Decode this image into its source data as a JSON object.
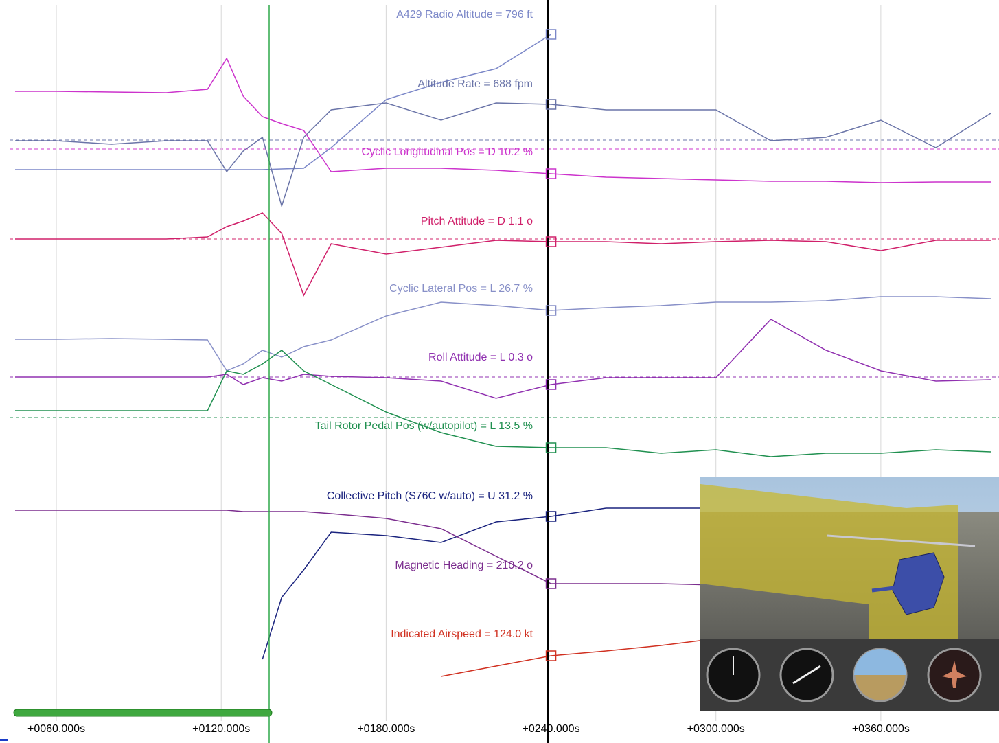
{
  "chart_data": {
    "type": "line",
    "x": [
      45,
      60,
      80,
      100,
      115,
      122,
      128,
      135,
      142,
      150,
      160,
      180,
      200,
      220,
      240,
      260,
      280,
      300,
      320,
      340,
      360,
      380,
      400
    ],
    "xlim": [
      43,
      403
    ],
    "xticks": [
      {
        "value": 60,
        "label": "+0060.000s"
      },
      {
        "value": 120,
        "label": "+0120.000s"
      },
      {
        "value": 180,
        "label": "+0180.000s"
      },
      {
        "value": 240,
        "label": "+0240.000s"
      },
      {
        "value": 300,
        "label": "+0300.000s"
      },
      {
        "value": 360,
        "label": "+0360.000s"
      }
    ],
    "ylim": [
      0,
      1050
    ],
    "grid": true,
    "series": [
      {
        "name": "A429 Radio Altitude = 796 ft",
        "color": "#7b87c8",
        "values": [
          803,
          803,
          803,
          803,
          803,
          803,
          803,
          803,
          804,
          805,
          835,
          905,
          930,
          950,
          1000,
          null,
          null,
          null,
          null,
          null,
          null,
          null,
          null
        ]
      },
      {
        "name": "Altitude Rate = 688 fpm",
        "color": "#6a74a8",
        "values": [
          845,
          845,
          840,
          845,
          845,
          800,
          830,
          850,
          750,
          850,
          890,
          900,
          875,
          900,
          898,
          890,
          890,
          890,
          845,
          850,
          875,
          835,
          885
        ]
      },
      {
        "name": "Cyclic Longitudinal Pos = D 10.2 %",
        "color": "#cc33cc",
        "values": [
          917,
          917,
          916,
          915,
          920,
          965,
          910,
          880,
          870,
          860,
          800,
          805,
          805,
          802,
          797,
          792,
          790,
          788,
          786,
          786,
          784,
          785,
          785
        ]
      },
      {
        "name": "Pitch Attitude = D 1.1 o",
        "color": "#d0206a",
        "values": [
          702,
          702,
          702,
          702,
          705,
          720,
          728,
          740,
          710,
          620,
          695,
          680,
          690,
          700,
          698,
          698,
          695,
          698,
          700,
          698,
          685,
          700,
          700
        ]
      },
      {
        "name": "Cyclic Lateral Pos = L 26.7 %",
        "color": "#8890c8",
        "values": [
          556,
          556,
          557,
          556,
          555,
          510,
          520,
          540,
          530,
          545,
          555,
          590,
          610,
          605,
          598,
          602,
          605,
          610,
          610,
          612,
          618,
          618,
          615
        ]
      },
      {
        "name": "Roll Attitude = L 0.3 o",
        "color": "#9030b0",
        "values": [
          501,
          501,
          501,
          501,
          501,
          505,
          490,
          500,
          495,
          505,
          502,
          500,
          495,
          470,
          490,
          500,
          500,
          500,
          585,
          540,
          510,
          495,
          497
        ]
      },
      {
        "name": "Tail Rotor Pedal Pos (w/autopilot) = L 13.5 %",
        "color": "#209050",
        "values": [
          452,
          452,
          452,
          452,
          452,
          510,
          505,
          520,
          540,
          510,
          490,
          450,
          420,
          400,
          398,
          398,
          390,
          395,
          385,
          390,
          390,
          395,
          392
        ]
      },
      {
        "name": "Collective Pitch (S76C w/auto) = U 31.2 %",
        "color": "#1a237e",
        "values": [
          null,
          null,
          null,
          null,
          null,
          null,
          null,
          90,
          180,
          220,
          275,
          270,
          260,
          290,
          298,
          310,
          310,
          310,
          310,
          310,
          310,
          310,
          310
        ]
      },
      {
        "name": "Magnetic Heading = 210.2 o",
        "color": "#7b2d8e",
        "values": [
          307,
          307,
          307,
          307,
          307,
          307,
          305,
          305,
          305,
          305,
          302,
          295,
          280,
          240,
          200,
          200,
          200,
          198,
          195,
          195,
          195,
          195,
          195
        ]
      },
      {
        "name": "Indicated Airspeed = 124.0 kt",
        "color": "#d03020",
        "values": [
          null,
          null,
          null,
          null,
          null,
          null,
          null,
          null,
          null,
          null,
          null,
          null,
          65,
          80,
          95,
          102,
          110,
          120,
          130,
          130,
          130,
          130,
          130
        ]
      }
    ]
  }
}
